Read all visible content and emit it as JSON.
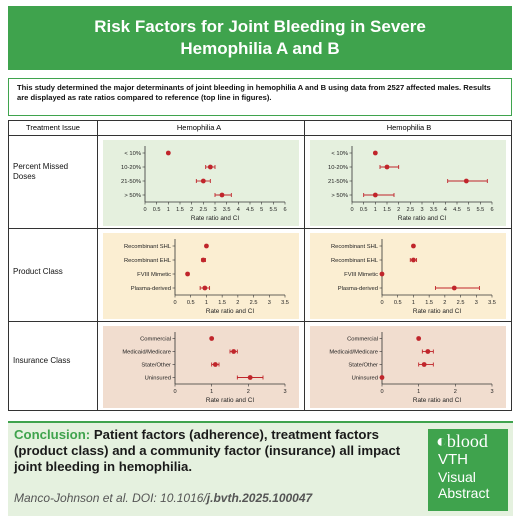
{
  "header": {
    "title": "Risk Factors for Joint Bleeding in Severe Hemophilia A and B"
  },
  "intro": {
    "text": "This study determined the major determinants of joint bleeding in hemophilia A and B using data from 2527 affected males. Results are displayed as rate ratios compared to reference (top line in figures)."
  },
  "table": {
    "col_treatment": "Treatment Issue",
    "col_a": "Hemophilia A",
    "col_b": "Hemophilia B",
    "rows": [
      {
        "label": "Percent Missed Doses",
        "bg": "#e5f0de"
      },
      {
        "label": "Product Class",
        "bg": "#fbeed2"
      },
      {
        "label": "Insurance Class",
        "bg": "#f1ddcf"
      }
    ]
  },
  "colors": {
    "green": "#3fa34d",
    "point": "#c0252b"
  },
  "chart_data": [
    {
      "type": "scatter",
      "panel": "Percent Missed Doses - Hemophilia A",
      "xlabel": "Rate ratio and CI",
      "xlim": [
        0,
        6
      ],
      "ticks": [
        "0",
        "0.5",
        "1",
        "1.5",
        "2",
        "2.5",
        "3",
        "3.5",
        "4",
        "4.5",
        "5",
        "5.5",
        "6"
      ],
      "categories": [
        "< 10%",
        "10-20%",
        "21-50%",
        "> 50%"
      ],
      "points": [
        {
          "est": 1.0,
          "lo": 1.0,
          "hi": 1.0
        },
        {
          "est": 2.8,
          "lo": 2.6,
          "hi": 3.0
        },
        {
          "est": 2.5,
          "lo": 2.2,
          "hi": 2.8
        },
        {
          "est": 3.3,
          "lo": 3.0,
          "hi": 3.7
        }
      ]
    },
    {
      "type": "scatter",
      "panel": "Percent Missed Doses - Hemophilia B",
      "xlabel": "Rate ratio and CI",
      "xlim": [
        0,
        6
      ],
      "ticks": [
        "0",
        "0.5",
        "1",
        "1.5",
        "2",
        "2.5",
        "3",
        "3.5",
        "4",
        "4.5",
        "5",
        "5.5",
        "6"
      ],
      "categories": [
        "< 10%",
        "10-20%",
        "21-50%",
        "> 50%"
      ],
      "points": [
        {
          "est": 1.0,
          "lo": 1.0,
          "hi": 1.0
        },
        {
          "est": 1.5,
          "lo": 1.2,
          "hi": 2.0
        },
        {
          "est": 4.9,
          "lo": 4.1,
          "hi": 5.8
        },
        {
          "est": 1.0,
          "lo": 0.5,
          "hi": 1.8
        }
      ]
    },
    {
      "type": "scatter",
      "panel": "Product Class - Hemophilia A",
      "xlabel": "Rate ratio and CI",
      "xlim": [
        0,
        3.5
      ],
      "ticks": [
        "0",
        "0.5",
        "1",
        "1.5",
        "2",
        "2.5",
        "3",
        "3.5"
      ],
      "categories": [
        "Recombinant SHL",
        "Recombinant EHL",
        "FVIII Mimetic",
        "Plasma-derived"
      ],
      "points": [
        {
          "est": 1.0,
          "lo": 1.0,
          "hi": 1.0
        },
        {
          "est": 0.9,
          "lo": 0.85,
          "hi": 0.97
        },
        {
          "est": 0.4,
          "lo": 0.37,
          "hi": 0.44
        },
        {
          "est": 0.95,
          "lo": 0.8,
          "hi": 1.1
        }
      ]
    },
    {
      "type": "scatter",
      "panel": "Product Class - Hemophilia B",
      "xlabel": "Rate ratio and CI",
      "xlim": [
        0,
        3.5
      ],
      "ticks": [
        "0",
        "0.5",
        "1",
        "1.5",
        "2",
        "2.5",
        "3",
        "3.5"
      ],
      "categories": [
        "Recombinant SHL",
        "Recombinant EHL",
        "FVIII Mimetic",
        "Plasma-derived"
      ],
      "points": [
        {
          "est": 1.0,
          "lo": 1.0,
          "hi": 1.0
        },
        {
          "est": 1.0,
          "lo": 0.9,
          "hi": 1.1
        },
        {
          "est": 0.0,
          "lo": 0.0,
          "hi": 0.0
        },
        {
          "est": 2.3,
          "lo": 1.7,
          "hi": 3.1
        }
      ]
    },
    {
      "type": "scatter",
      "panel": "Insurance Class - Hemophilia A",
      "xlabel": "Rate ratio and CI",
      "xlim": [
        0,
        3
      ],
      "ticks": [
        "0",
        "1",
        "2",
        "3"
      ],
      "categories": [
        "Commercial",
        "Medicaid/Medicare",
        "State/Other",
        "Uninsured"
      ],
      "points": [
        {
          "est": 1.0,
          "lo": 1.0,
          "hi": 1.0
        },
        {
          "est": 1.6,
          "lo": 1.5,
          "hi": 1.7
        },
        {
          "est": 1.1,
          "lo": 1.0,
          "hi": 1.2
        },
        {
          "est": 2.05,
          "lo": 1.7,
          "hi": 2.4
        }
      ]
    },
    {
      "type": "scatter",
      "panel": "Insurance Class - Hemophilia B",
      "xlabel": "Rate ratio and CI",
      "xlim": [
        0,
        3
      ],
      "ticks": [
        "0",
        "1",
        "2",
        "3"
      ],
      "categories": [
        "Commercial",
        "Medicaid/Medicare",
        "State/Other",
        "Uninsured"
      ],
      "points": [
        {
          "est": 1.0,
          "lo": 1.0,
          "hi": 1.0
        },
        {
          "est": 1.25,
          "lo": 1.1,
          "hi": 1.4
        },
        {
          "est": 1.15,
          "lo": 1.0,
          "hi": 1.4
        },
        {
          "est": 0.0,
          "lo": 0.0,
          "hi": 0.0
        }
      ]
    }
  ],
  "conclusion": {
    "head": "Conclusion:",
    "text": "Patient factors (adherence), treatment factors (product class) and a community factor (insurance) all impact joint bleeding in hemophilia.",
    "citation": "Manco-Johnson et al. DOI: 10.1016/",
    "citation_bold": "j.bvth.2025.100047"
  },
  "logo": {
    "blood": "blood",
    "vth": "VTH",
    "visual": "Visual",
    "abstract": "Abstract"
  }
}
